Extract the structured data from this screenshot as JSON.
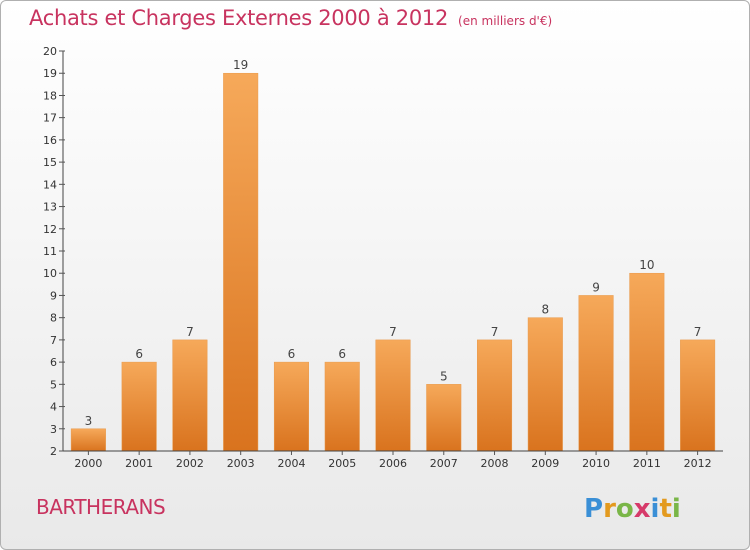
{
  "header": {
    "title": "Achats et Charges Externes 2000 à 2012",
    "subtitle": "(en milliers d'€)"
  },
  "commune": "BARTHERANS",
  "logo_text": "Proxiti",
  "colors": {
    "title": "#c8335f",
    "bar_light": "#f6a95a",
    "bar_dark": "#d9731e",
    "axis": "#444444",
    "grid_tick": "#555555"
  },
  "chart_data": {
    "type": "bar",
    "categories": [
      "2000",
      "2001",
      "2002",
      "2003",
      "2004",
      "2005",
      "2006",
      "2007",
      "2008",
      "2009",
      "2010",
      "2011",
      "2012"
    ],
    "values": [
      3,
      6,
      7,
      19,
      6,
      6,
      7,
      5,
      7,
      8,
      9,
      10,
      7
    ],
    "ylim": [
      2,
      20
    ],
    "yticks": [
      2,
      3,
      4,
      5,
      6,
      7,
      8,
      9,
      10,
      11,
      12,
      13,
      14,
      15,
      16,
      17,
      18,
      19,
      20
    ],
    "data_labels": [
      "3",
      "6",
      "7",
      "19",
      "6",
      "6",
      "7",
      "5",
      "7",
      "8",
      "9",
      "10",
      "7"
    ],
    "grid": false,
    "legend": "none"
  }
}
